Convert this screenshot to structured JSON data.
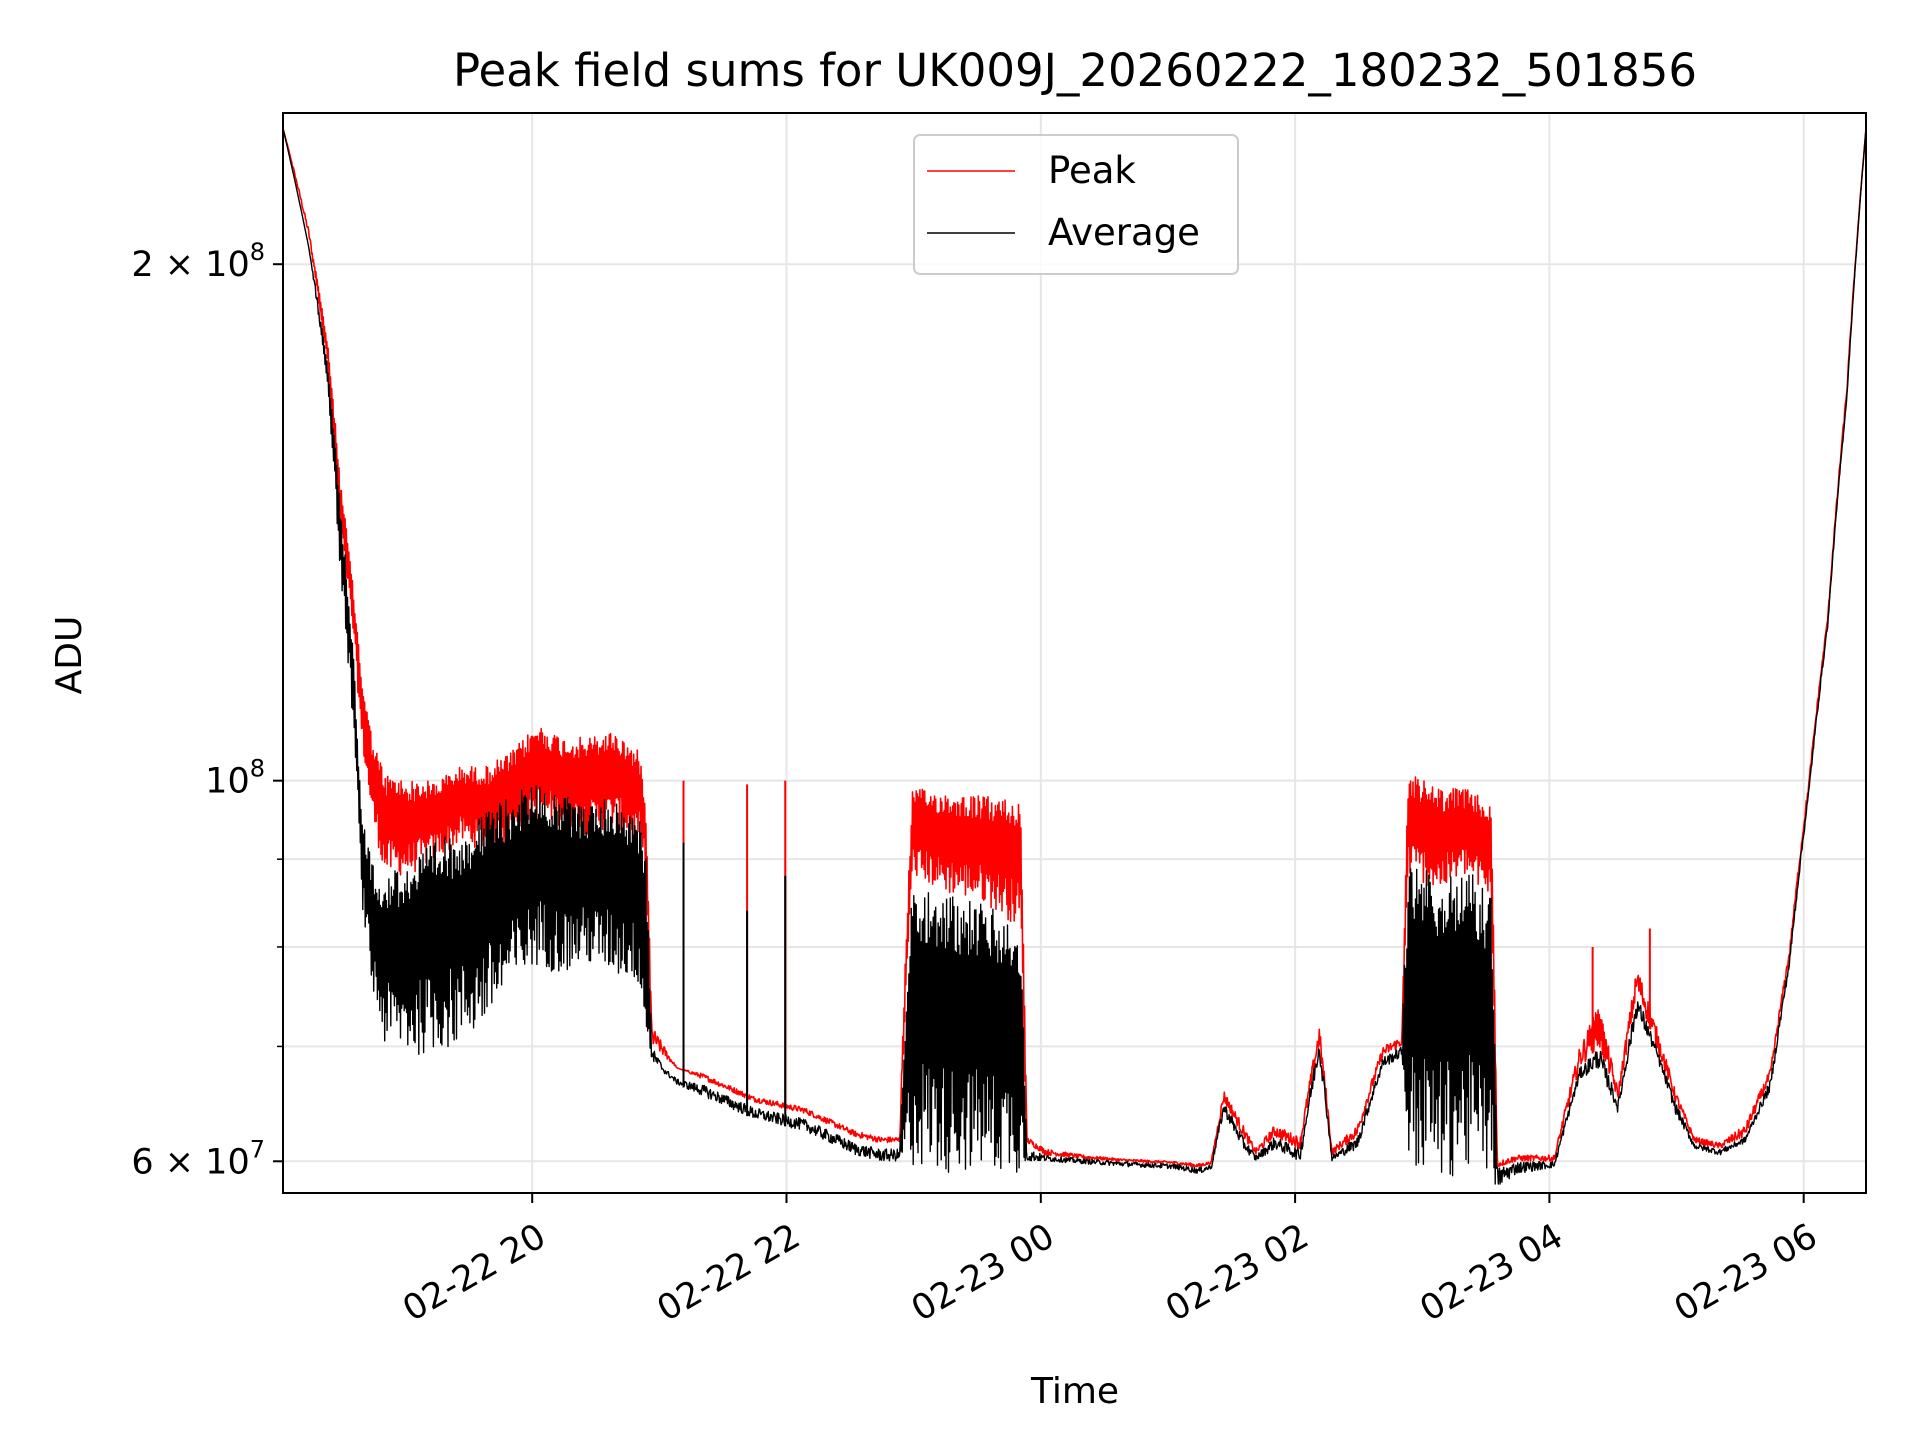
{
  "chart_data": {
    "type": "line",
    "title": "Peak field sums for UK009J_20260222_180232_501856",
    "xlabel": "Time",
    "ylabel": "ADU",
    "yscale": "log",
    "ylim": [
      57500000,
      245000000
    ],
    "xlim_hours": [
      0.0,
      12.45
    ],
    "x_origin": "02-22 18:02",
    "grid": true,
    "legend_location": "upper center",
    "x_ticks": [
      {
        "hour": 1.96,
        "label": "02-22 20"
      },
      {
        "hour": 3.96,
        "label": "02-22 22"
      },
      {
        "hour": 5.96,
        "label": "02-23 00"
      },
      {
        "hour": 7.96,
        "label": "02-23 02"
      },
      {
        "hour": 9.96,
        "label": "02-23 04"
      },
      {
        "hour": 11.96,
        "label": "02-23 06"
      }
    ],
    "y_major_ticks": [
      {
        "value": 60000000,
        "mant": "6",
        "exp": "7"
      },
      {
        "value": 100000000,
        "mant": "",
        "exp": "8"
      },
      {
        "value": 200000000,
        "mant": "2",
        "exp": "8"
      }
    ],
    "y_minor_ticks": [
      70000000,
      80000000,
      90000000
    ],
    "series": [
      {
        "name": "Peak",
        "color": "#ff0000",
        "envelope": [
          [
            0.0,
            240,
            240
          ],
          [
            0.2,
            210,
            208
          ],
          [
            0.35,
            180,
            175
          ],
          [
            0.45,
            150,
            140
          ],
          [
            0.55,
            130,
            122
          ],
          [
            0.62,
            115,
            105
          ],
          [
            0.7,
            106,
            95
          ],
          [
            0.8,
            101,
            88
          ],
          [
            1.0,
            100,
            88
          ],
          [
            1.2,
            100,
            90
          ],
          [
            1.4,
            102,
            92
          ],
          [
            1.6,
            102,
            91
          ],
          [
            1.8,
            104,
            92
          ],
          [
            2.0,
            108,
            95
          ],
          [
            2.2,
            106,
            94
          ],
          [
            2.4,
            106,
            93
          ],
          [
            2.6,
            107,
            94
          ],
          [
            2.8,
            104,
            92
          ],
          [
            2.85,
            99,
            88
          ],
          [
            2.9,
            72,
            70
          ],
          [
            3.0,
            70,
            69
          ],
          [
            3.1,
            68,
            68
          ],
          [
            3.3,
            67.5,
            67
          ],
          [
            3.5,
            66.5,
            66
          ],
          [
            3.7,
            65.5,
            65
          ],
          [
            3.9,
            65,
            64.5
          ],
          [
            4.1,
            64.5,
            64
          ],
          [
            4.3,
            63.5,
            63
          ],
          [
            4.5,
            62.5,
            62
          ],
          [
            4.7,
            62,
            61.5
          ],
          [
            4.85,
            62,
            61.5
          ],
          [
            4.95,
            99,
            88
          ],
          [
            5.2,
            98.5,
            86
          ],
          [
            5.5,
            98,
            85
          ],
          [
            5.8,
            97.5,
            82
          ],
          [
            5.85,
            62,
            61.5
          ],
          [
            6.0,
            61,
            60.5
          ],
          [
            6.3,
            60.5,
            60.2
          ],
          [
            6.6,
            60.2,
            60
          ],
          [
            7.0,
            60,
            59.8
          ],
          [
            7.2,
            59.8,
            59.5
          ],
          [
            7.3,
            60,
            59.8
          ],
          [
            7.4,
            66,
            65
          ],
          [
            7.55,
            63,
            62
          ],
          [
            7.65,
            61,
            60.5
          ],
          [
            7.8,
            63,
            62
          ],
          [
            8.0,
            62,
            61
          ],
          [
            8.15,
            72,
            70
          ],
          [
            8.25,
            61,
            60.5
          ],
          [
            8.45,
            63,
            62
          ],
          [
            8.65,
            70,
            69
          ],
          [
            8.8,
            71,
            70
          ],
          [
            8.85,
            101,
            88
          ],
          [
            9.1,
            99,
            86
          ],
          [
            9.3,
            99,
            88
          ],
          [
            9.5,
            97,
            85
          ],
          [
            9.55,
            60,
            59.5
          ],
          [
            9.7,
            60.5,
            60
          ],
          [
            10.0,
            60.5,
            60
          ],
          [
            10.2,
            70,
            68
          ],
          [
            10.35,
            74,
            70
          ],
          [
            10.5,
            66,
            65
          ],
          [
            10.65,
            78,
            75
          ],
          [
            10.8,
            72,
            70
          ],
          [
            10.95,
            66,
            65
          ],
          [
            11.1,
            62,
            61.5
          ],
          [
            11.3,
            61.5,
            61
          ],
          [
            11.5,
            63,
            62
          ],
          [
            11.7,
            68,
            67
          ],
          [
            11.85,
            80,
            79
          ],
          [
            12.0,
            100,
            99
          ],
          [
            12.15,
            125,
            124
          ],
          [
            12.3,
            170,
            168
          ],
          [
            12.45,
            240,
            240
          ]
        ],
        "spikes": [
          [
            3.15,
            100
          ],
          [
            3.65,
            99.5
          ],
          [
            3.95,
            100
          ],
          [
            10.3,
            80
          ],
          [
            10.75,
            82
          ]
        ]
      },
      {
        "name": "Average",
        "color": "#000000",
        "envelope": [
          [
            0.0,
            240,
            240
          ],
          [
            0.2,
            205,
            205
          ],
          [
            0.35,
            175,
            170
          ],
          [
            0.45,
            145,
            132
          ],
          [
            0.55,
            120,
            108
          ],
          [
            0.62,
            95,
            85
          ],
          [
            0.7,
            90,
            75
          ],
          [
            0.8,
            88,
            70
          ],
          [
            1.0,
            90,
            69
          ],
          [
            1.2,
            92,
            69.5
          ],
          [
            1.4,
            94,
            70
          ],
          [
            1.6,
            96,
            72
          ],
          [
            1.8,
            98,
            75
          ],
          [
            2.0,
            100,
            78
          ],
          [
            2.2,
            98,
            77
          ],
          [
            2.4,
            97,
            78
          ],
          [
            2.6,
            98,
            77
          ],
          [
            2.8,
            95,
            76
          ],
          [
            2.85,
            92,
            70
          ],
          [
            2.9,
            70,
            68.5
          ],
          [
            3.0,
            68,
            67.5
          ],
          [
            3.1,
            67,
            66.5
          ],
          [
            3.3,
            66.5,
            65.5
          ],
          [
            3.5,
            65.5,
            64.5
          ],
          [
            3.7,
            64.5,
            63.5
          ],
          [
            3.9,
            64,
            63
          ],
          [
            4.1,
            63.5,
            62.5
          ],
          [
            4.3,
            62.5,
            61.5
          ],
          [
            4.5,
            61.5,
            60.5
          ],
          [
            4.7,
            61,
            60
          ],
          [
            4.85,
            61,
            60
          ],
          [
            4.95,
            88,
            59.5
          ],
          [
            5.2,
            86,
            59
          ],
          [
            5.5,
            85,
            59
          ],
          [
            5.8,
            82,
            59
          ],
          [
            5.85,
            61,
            60
          ],
          [
            6.0,
            60.5,
            60
          ],
          [
            6.3,
            60.2,
            59.8
          ],
          [
            6.6,
            60,
            59.6
          ],
          [
            7.0,
            59.8,
            59.4
          ],
          [
            7.2,
            59.5,
            59
          ],
          [
            7.3,
            59.8,
            59.3
          ],
          [
            7.4,
            65,
            64
          ],
          [
            7.55,
            62,
            61
          ],
          [
            7.65,
            60.5,
            60
          ],
          [
            7.8,
            62,
            61
          ],
          [
            8.0,
            61,
            60
          ],
          [
            8.15,
            71,
            69
          ],
          [
            8.25,
            60.5,
            60
          ],
          [
            8.45,
            62,
            61
          ],
          [
            8.65,
            69,
            68
          ],
          [
            8.8,
            70,
            69
          ],
          [
            8.85,
            90,
            59
          ],
          [
            9.1,
            88,
            58.5
          ],
          [
            9.3,
            89,
            59
          ],
          [
            9.5,
            86,
            58.5
          ],
          [
            9.55,
            59.5,
            57.8
          ],
          [
            9.7,
            60,
            59
          ],
          [
            10.0,
            60,
            59.5
          ],
          [
            10.2,
            68,
            67
          ],
          [
            10.35,
            70,
            68
          ],
          [
            10.5,
            65,
            64
          ],
          [
            10.65,
            75,
            73
          ],
          [
            10.8,
            70,
            69
          ],
          [
            10.95,
            65,
            64
          ],
          [
            11.1,
            61.5,
            61
          ],
          [
            11.3,
            61,
            60.5
          ],
          [
            11.5,
            62,
            61.5
          ],
          [
            11.7,
            67,
            66
          ],
          [
            11.85,
            79,
            78
          ],
          [
            12.0,
            99,
            98
          ],
          [
            12.15,
            124,
            123
          ],
          [
            12.3,
            168,
            167
          ],
          [
            12.45,
            240,
            240
          ]
        ],
        "spikes": [
          [
            3.15,
            92
          ],
          [
            3.65,
            84
          ],
          [
            3.95,
            88
          ]
        ]
      }
    ],
    "envelope_units": "hours since x_origin, upper and lower ADU in millions"
  }
}
